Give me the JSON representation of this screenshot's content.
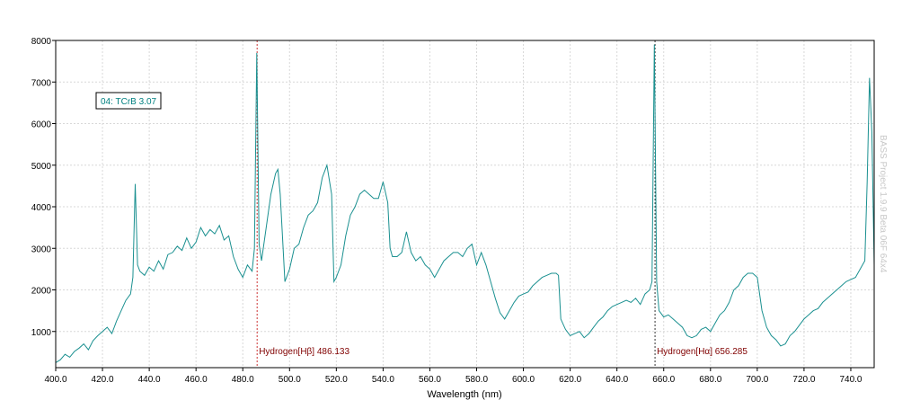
{
  "chart_data": {
    "type": "line",
    "title": "",
    "xlabel": "Wavelength (nm)",
    "ylabel": "",
    "xlim": [
      400,
      750
    ],
    "ylim": [
      130,
      8000
    ],
    "x_ticks": [
      400,
      420,
      440,
      460,
      480,
      500,
      520,
      540,
      560,
      580,
      600,
      620,
      640,
      660,
      680,
      700,
      720,
      740
    ],
    "x_tick_labels": [
      "400.0",
      "420.0",
      "440.0",
      "460.0",
      "480.0",
      "500.0",
      "520.0",
      "540.0",
      "560.0",
      "580.0",
      "600.0",
      "620.0",
      "640.0",
      "660.0",
      "680.0",
      "700.0",
      "720.0",
      "740.0"
    ],
    "y_ticks": [
      1000,
      2000,
      3000,
      4000,
      5000,
      6000,
      7000,
      8000
    ],
    "y_tick_labels": [
      "1000",
      "2000",
      "3000",
      "4000",
      "5000",
      "6000",
      "7000",
      "8000"
    ],
    "grid": true,
    "series_color": "#1a9090",
    "series": [
      {
        "name": "04: TCrB 3.07",
        "points": [
          [
            400,
            250
          ],
          [
            402,
            320
          ],
          [
            404,
            450
          ],
          [
            406,
            380
          ],
          [
            408,
            520
          ],
          [
            410,
            600
          ],
          [
            412,
            700
          ],
          [
            414,
            560
          ],
          [
            416,
            780
          ],
          [
            418,
            900
          ],
          [
            420,
            1000
          ],
          [
            422,
            1100
          ],
          [
            424,
            950
          ],
          [
            426,
            1250
          ],
          [
            428,
            1500
          ],
          [
            430,
            1750
          ],
          [
            432,
            1900
          ],
          [
            433,
            2300
          ],
          [
            434,
            4550
          ],
          [
            435,
            2600
          ],
          [
            436,
            2450
          ],
          [
            438,
            2350
          ],
          [
            440,
            2550
          ],
          [
            442,
            2450
          ],
          [
            444,
            2700
          ],
          [
            446,
            2500
          ],
          [
            448,
            2850
          ],
          [
            450,
            2900
          ],
          [
            452,
            3050
          ],
          [
            454,
            2950
          ],
          [
            456,
            3250
          ],
          [
            458,
            3000
          ],
          [
            460,
            3150
          ],
          [
            462,
            3500
          ],
          [
            464,
            3300
          ],
          [
            466,
            3450
          ],
          [
            468,
            3350
          ],
          [
            470,
            3550
          ],
          [
            472,
            3200
          ],
          [
            474,
            3300
          ],
          [
            476,
            2800
          ],
          [
            478,
            2500
          ],
          [
            480,
            2300
          ],
          [
            482,
            2600
          ],
          [
            484,
            2450
          ],
          [
            485,
            3000
          ],
          [
            486,
            7700
          ],
          [
            487,
            3100
          ],
          [
            488,
            2700
          ],
          [
            490,
            3500
          ],
          [
            492,
            4300
          ],
          [
            494,
            4800
          ],
          [
            495,
            4900
          ],
          [
            496,
            4300
          ],
          [
            498,
            2200
          ],
          [
            500,
            2500
          ],
          [
            502,
            3000
          ],
          [
            504,
            3100
          ],
          [
            506,
            3500
          ],
          [
            508,
            3800
          ],
          [
            510,
            3900
          ],
          [
            512,
            4100
          ],
          [
            514,
            4700
          ],
          [
            516,
            5000
          ],
          [
            518,
            4300
          ],
          [
            519,
            2200
          ],
          [
            520,
            2300
          ],
          [
            522,
            2600
          ],
          [
            524,
            3300
          ],
          [
            526,
            3800
          ],
          [
            528,
            4000
          ],
          [
            530,
            4300
          ],
          [
            532,
            4400
          ],
          [
            534,
            4300
          ],
          [
            536,
            4200
          ],
          [
            538,
            4200
          ],
          [
            540,
            4600
          ],
          [
            542,
            4100
          ],
          [
            543,
            3000
          ],
          [
            544,
            2800
          ],
          [
            546,
            2800
          ],
          [
            548,
            2900
          ],
          [
            550,
            3400
          ],
          [
            552,
            2900
          ],
          [
            554,
            2700
          ],
          [
            556,
            2800
          ],
          [
            558,
            2600
          ],
          [
            560,
            2500
          ],
          [
            562,
            2300
          ],
          [
            564,
            2500
          ],
          [
            566,
            2700
          ],
          [
            568,
            2800
          ],
          [
            570,
            2900
          ],
          [
            572,
            2900
          ],
          [
            574,
            2800
          ],
          [
            576,
            3000
          ],
          [
            578,
            3100
          ],
          [
            580,
            2600
          ],
          [
            582,
            2900
          ],
          [
            584,
            2600
          ],
          [
            586,
            2200
          ],
          [
            588,
            1800
          ],
          [
            590,
            1450
          ],
          [
            592,
            1300
          ],
          [
            594,
            1500
          ],
          [
            596,
            1700
          ],
          [
            598,
            1850
          ],
          [
            600,
            1900
          ],
          [
            602,
            1950
          ],
          [
            604,
            2100
          ],
          [
            606,
            2200
          ],
          [
            608,
            2300
          ],
          [
            610,
            2350
          ],
          [
            612,
            2400
          ],
          [
            614,
            2400
          ],
          [
            615,
            2350
          ],
          [
            616,
            1300
          ],
          [
            618,
            1050
          ],
          [
            620,
            900
          ],
          [
            622,
            950
          ],
          [
            624,
            1000
          ],
          [
            626,
            850
          ],
          [
            628,
            950
          ],
          [
            630,
            1100
          ],
          [
            632,
            1250
          ],
          [
            634,
            1350
          ],
          [
            636,
            1500
          ],
          [
            638,
            1600
          ],
          [
            640,
            1650
          ],
          [
            642,
            1700
          ],
          [
            644,
            1750
          ],
          [
            646,
            1700
          ],
          [
            648,
            1800
          ],
          [
            650,
            1650
          ],
          [
            652,
            1900
          ],
          [
            654,
            2000
          ],
          [
            655,
            2200
          ],
          [
            656,
            7900
          ],
          [
            657,
            2200
          ],
          [
            658,
            1500
          ],
          [
            660,
            1350
          ],
          [
            662,
            1400
          ],
          [
            664,
            1300
          ],
          [
            666,
            1200
          ],
          [
            668,
            1100
          ],
          [
            670,
            900
          ],
          [
            672,
            850
          ],
          [
            674,
            900
          ],
          [
            676,
            1050
          ],
          [
            678,
            1100
          ],
          [
            680,
            1000
          ],
          [
            682,
            1200
          ],
          [
            684,
            1400
          ],
          [
            686,
            1500
          ],
          [
            688,
            1700
          ],
          [
            690,
            2000
          ],
          [
            692,
            2100
          ],
          [
            694,
            2300
          ],
          [
            696,
            2400
          ],
          [
            698,
            2400
          ],
          [
            700,
            2300
          ],
          [
            702,
            1500
          ],
          [
            704,
            1100
          ],
          [
            706,
            900
          ],
          [
            708,
            800
          ],
          [
            710,
            650
          ],
          [
            712,
            700
          ],
          [
            714,
            900
          ],
          [
            716,
            1000
          ],
          [
            718,
            1150
          ],
          [
            720,
            1300
          ],
          [
            722,
            1400
          ],
          [
            724,
            1500
          ],
          [
            726,
            1550
          ],
          [
            728,
            1700
          ],
          [
            730,
            1800
          ],
          [
            732,
            1900
          ],
          [
            734,
            2000
          ],
          [
            736,
            2100
          ],
          [
            738,
            2200
          ],
          [
            740,
            2250
          ],
          [
            742,
            2300
          ],
          [
            744,
            2500
          ],
          [
            746,
            2700
          ],
          [
            747,
            4600
          ],
          [
            748,
            7100
          ],
          [
            749,
            5800
          ],
          [
            750,
            2600
          ]
        ]
      }
    ],
    "annotations": [
      {
        "label": "Hydrogen[Hβ] 486.133",
        "x": 486.133,
        "color": "#cc3333"
      },
      {
        "label": "Hydrogen[Hα] 656.285",
        "x": 656.285,
        "color": "#333333"
      }
    ]
  },
  "series_label": "04: TCrB 3.07",
  "watermark": "BASS Project 1.9.9 Beta 06F 64x4"
}
